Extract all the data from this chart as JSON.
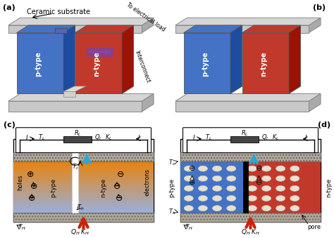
{
  "fig_width": 4.74,
  "fig_height": 3.39,
  "dpi": 100,
  "panel_labels": [
    "(a)",
    "(b)",
    "(c)",
    "(d)"
  ],
  "ceramic_text": "Ceramic substrate",
  "to_elec_text": "To electrical load",
  "interconnect_text": "Interconnect",
  "ptype_color": "#4472c4",
  "ntype_color": "#c0392b",
  "substrate_top_color": "#c8a96e",
  "substrate_bottom_color": "#b8975e",
  "ceramic_color": "#d4d0c8",
  "interconnect_color_top": "#5b5ea6",
  "interconnect_color_bottom": "#7b3f8e",
  "gradient_hot_color": "#e8820a",
  "gradient_cold_color": "#9bafd9",
  "pore_color": "#e8e0d0",
  "resistor_color": "#333333",
  "blue_arrow_color": "#29a8d8",
  "red_arrow_color": "#cc2200"
}
